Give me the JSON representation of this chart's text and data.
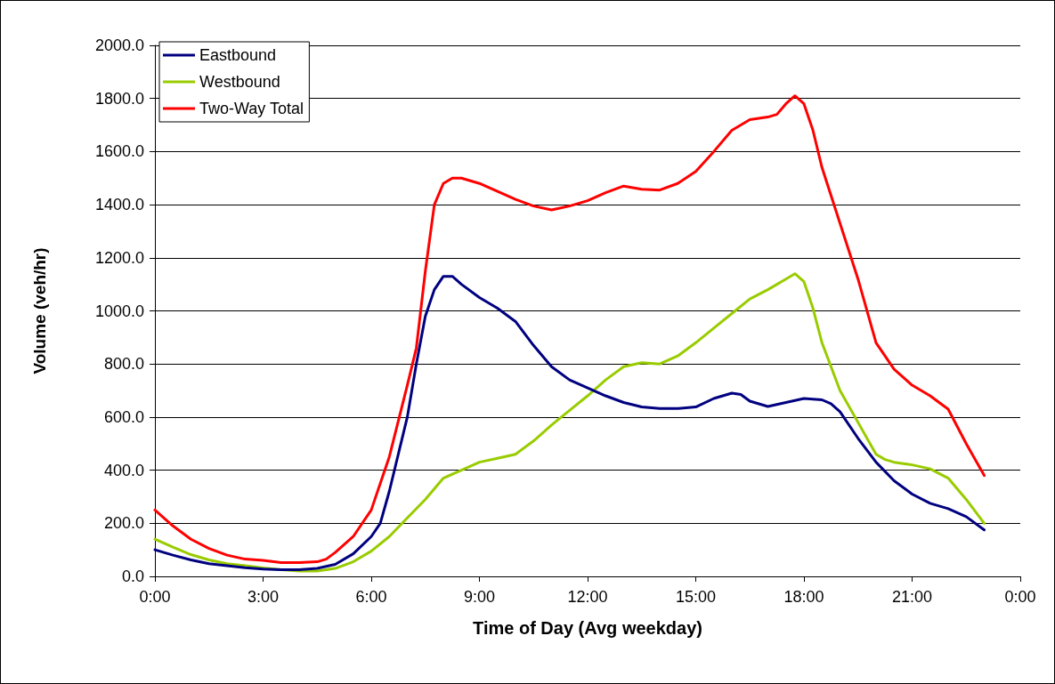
{
  "chart_data": {
    "type": "line",
    "xlabel": "Time of Day (Avg weekday)",
    "ylabel": "Volume (veh/hr)",
    "xlim": [
      0,
      24
    ],
    "ylim": [
      0,
      2000
    ],
    "xticks": [
      {
        "value": 0,
        "label": "0:00"
      },
      {
        "value": 3,
        "label": "3:00"
      },
      {
        "value": 6,
        "label": "6:00"
      },
      {
        "value": 9,
        "label": "9:00"
      },
      {
        "value": 12,
        "label": "12:00"
      },
      {
        "value": 15,
        "label": "15:00"
      },
      {
        "value": 18,
        "label": "18:00"
      },
      {
        "value": 21,
        "label": "21:00"
      },
      {
        "value": 24,
        "label": "0:00"
      }
    ],
    "yticks": [
      {
        "value": 0,
        "label": "0.0"
      },
      {
        "value": 200,
        "label": "200.0"
      },
      {
        "value": 400,
        "label": "400.0"
      },
      {
        "value": 600,
        "label": "600.0"
      },
      {
        "value": 800,
        "label": "800.0"
      },
      {
        "value": 1000,
        "label": "1000.0"
      },
      {
        "value": 1200,
        "label": "1200.0"
      },
      {
        "value": 1400,
        "label": "1400.0"
      },
      {
        "value": 1600,
        "label": "1600.0"
      },
      {
        "value": 1800,
        "label": "1800.0"
      },
      {
        "value": 2000,
        "label": "2000.0"
      }
    ],
    "grid": "y",
    "legend": "top left",
    "marker": "none",
    "line_style": "solid",
    "series": [
      {
        "name": "Eastbound",
        "color": "#000080",
        "x": [
          0,
          0.5,
          1,
          1.5,
          2,
          2.5,
          3,
          3.5,
          4,
          4.5,
          5,
          5.5,
          6,
          6.25,
          6.5,
          7,
          7.25,
          7.5,
          7.75,
          8,
          8.25,
          8.5,
          9,
          9.5,
          10,
          10.5,
          11,
          11.5,
          12,
          12.5,
          13,
          13.5,
          14,
          14.5,
          15,
          15.5,
          16,
          16.25,
          16.5,
          17,
          17.5,
          18,
          18.5,
          18.75,
          19,
          19.5,
          20,
          20.5,
          21,
          21.5,
          22,
          22.5,
          23
        ],
        "values": [
          100,
          80,
          62,
          48,
          40,
          33,
          28,
          25,
          25,
          30,
          45,
          85,
          150,
          200,
          320,
          600,
          800,
          980,
          1080,
          1130,
          1130,
          1100,
          1050,
          1010,
          960,
          870,
          790,
          740,
          710,
          680,
          655,
          638,
          632,
          632,
          638,
          670,
          690,
          685,
          660,
          640,
          655,
          670,
          665,
          650,
          620,
          520,
          430,
          360,
          310,
          275,
          255,
          225,
          175
        ]
      },
      {
        "name": "Westbound",
        "color": "#99cc00",
        "x": [
          0,
          0.5,
          1,
          1.5,
          2,
          2.5,
          3,
          3.5,
          4,
          4.5,
          5,
          5.5,
          6,
          6.5,
          7,
          7.5,
          8,
          8.5,
          9,
          9.5,
          10,
          10.5,
          11,
          11.5,
          12,
          12.5,
          13,
          13.5,
          14,
          14.5,
          15,
          15.5,
          16,
          16.5,
          17,
          17.5,
          17.75,
          18,
          18.25,
          18.5,
          19,
          19.5,
          20,
          20.25,
          20.5,
          21,
          21.5,
          22,
          22.5,
          23
        ],
        "values": [
          140,
          110,
          82,
          62,
          48,
          40,
          32,
          25,
          20,
          20,
          30,
          55,
          95,
          150,
          220,
          290,
          370,
          400,
          430,
          445,
          460,
          510,
          570,
          625,
          680,
          740,
          790,
          805,
          800,
          830,
          880,
          935,
          990,
          1045,
          1080,
          1120,
          1140,
          1110,
          1010,
          880,
          700,
          580,
          460,
          440,
          430,
          420,
          405,
          370,
          290,
          200
        ]
      },
      {
        "name": "Two-Way Total",
        "color": "#ff0000",
        "x": [
          0,
          0.5,
          1,
          1.5,
          2,
          2.5,
          3,
          3.5,
          4,
          4.5,
          4.75,
          5,
          5.5,
          6,
          6.25,
          6.5,
          7,
          7.25,
          7.5,
          7.75,
          8,
          8.25,
          8.5,
          9,
          9.5,
          10,
          10.5,
          11,
          11.5,
          12,
          12.5,
          13,
          13.5,
          14,
          14.5,
          15,
          15.5,
          16,
          16.5,
          17,
          17.25,
          17.5,
          17.75,
          18,
          18.25,
          18.5,
          19,
          19.5,
          20,
          20.5,
          21,
          21.5,
          22,
          22.5,
          23
        ],
        "values": [
          250,
          190,
          140,
          105,
          80,
          65,
          60,
          52,
          52,
          55,
          65,
          90,
          150,
          250,
          350,
          450,
          720,
          860,
          1150,
          1400,
          1480,
          1500,
          1500,
          1480,
          1450,
          1420,
          1395,
          1380,
          1395,
          1415,
          1445,
          1470,
          1458,
          1455,
          1480,
          1525,
          1600,
          1680,
          1720,
          1730,
          1740,
          1780,
          1810,
          1780,
          1680,
          1540,
          1330,
          1120,
          880,
          780,
          720,
          680,
          630,
          500,
          380
        ]
      }
    ]
  }
}
